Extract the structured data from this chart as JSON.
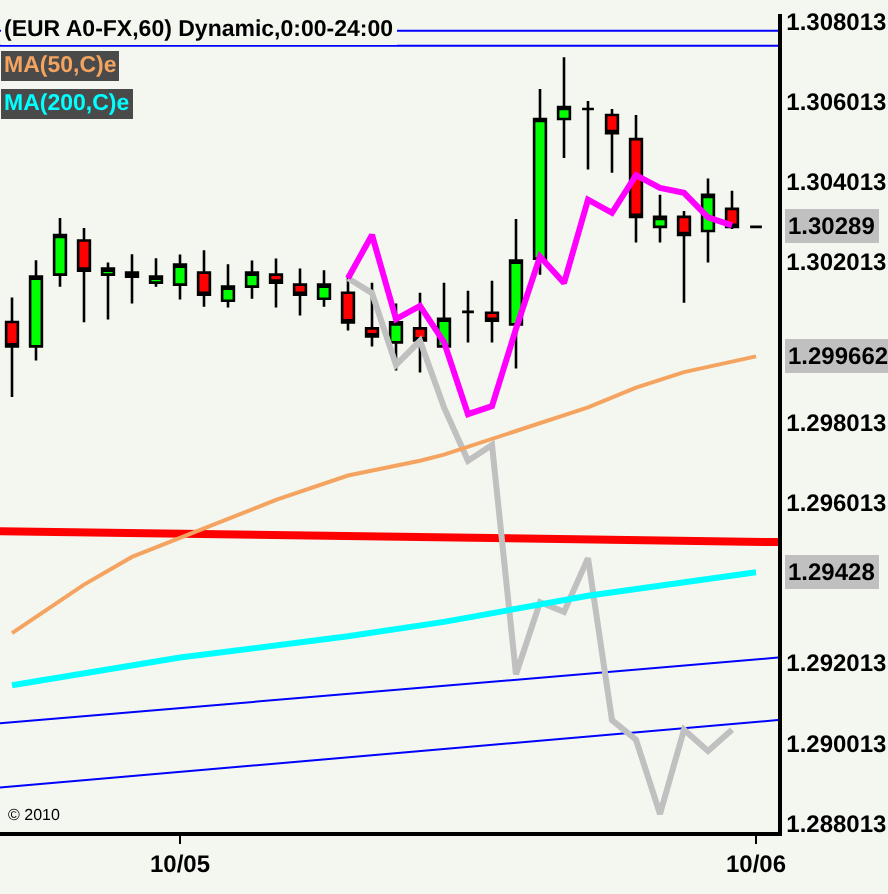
{
  "chart_data": {
    "type": "candlestick",
    "title": "(EUR A0-FX,60) Dynamic,0:00-24:00",
    "x": [
      "2010-10-04T17:00",
      "2010-10-04T18:00",
      "2010-10-04T19:00",
      "2010-10-04T20:00",
      "2010-10-04T21:00",
      "2010-10-04T22:00",
      "2010-10-04T23:00",
      "2010-10-05T00:00",
      "2010-10-05T01:00",
      "2010-10-05T02:00",
      "2010-10-05T03:00",
      "2010-10-05T04:00",
      "2010-10-05T05:00",
      "2010-10-05T06:00",
      "2010-10-05T07:00",
      "2010-10-05T08:00",
      "2010-10-05T09:00",
      "2010-10-05T10:00",
      "2010-10-05T11:00",
      "2010-10-05T12:00",
      "2010-10-05T13:00",
      "2010-10-05T14:00",
      "2010-10-05T15:00",
      "2010-10-05T16:00",
      "2010-10-05T17:00",
      "2010-10-05T18:00",
      "2010-10-05T19:00",
      "2010-10-05T20:00",
      "2010-10-05T21:00",
      "2010-10-05T22:00",
      "2010-10-05T23:00",
      "2010-10-06T00:00"
    ],
    "ohlc": [
      [
        1.30052,
        1.30113,
        1.29865,
        1.29991
      ],
      [
        1.29991,
        1.30206,
        1.29956,
        1.30165
      ],
      [
        1.3017,
        1.30311,
        1.3014,
        1.30269
      ],
      [
        1.30255,
        1.30286,
        1.30051,
        1.3018
      ],
      [
        1.3017,
        1.302,
        1.30058,
        1.30185
      ],
      [
        1.30175,
        1.30221,
        1.30098,
        1.30165
      ],
      [
        1.3015,
        1.30211,
        1.3014,
        1.30165
      ],
      [
        1.30145,
        1.3022,
        1.30108,
        1.30195
      ],
      [
        1.30175,
        1.30231,
        1.3009,
        1.3012
      ],
      [
        1.30105,
        1.30196,
        1.30088,
        1.3014
      ],
      [
        1.3014,
        1.30205,
        1.3011,
        1.30175
      ],
      [
        1.3017,
        1.3021,
        1.30088,
        1.3015
      ],
      [
        1.30145,
        1.30185,
        1.30068,
        1.3012
      ],
      [
        1.3011,
        1.30181,
        1.3009,
        1.30145
      ],
      [
        1.30125,
        1.3017,
        1.30031,
        1.30051
      ],
      [
        1.30036,
        1.3015,
        1.29991,
        1.30016
      ],
      [
        1.30001,
        1.30098,
        1.29931,
        1.30051
      ],
      [
        1.30036,
        1.30125,
        1.29926,
        1.30006
      ],
      [
        1.29991,
        1.3015,
        1.29991,
        1.3006
      ],
      [
        1.30077,
        1.3013,
        1.30001,
        1.30077
      ],
      [
        1.30075,
        1.30155,
        1.30001,
        1.30055
      ],
      [
        1.30046,
        1.30309,
        1.29936,
        1.30205
      ],
      [
        1.3021,
        1.30633,
        1.3017,
        1.30558
      ],
      [
        1.30558,
        1.30712,
        1.30461,
        1.30588
      ],
      [
        1.30583,
        1.30603,
        1.30432,
        1.30583
      ],
      [
        1.30568,
        1.30583,
        1.30424,
        1.30523
      ],
      [
        1.30508,
        1.30568,
        1.3025,
        1.30314
      ],
      [
        1.30289,
        1.30369,
        1.3025,
        1.30314
      ],
      [
        1.30314,
        1.30329,
        1.301,
        1.30269
      ],
      [
        1.30279,
        1.3041,
        1.302,
        1.30369
      ],
      [
        1.30334,
        1.30379,
        1.30284,
        1.30289
      ],
      [
        1.30289,
        1.30289,
        1.30289,
        1.30289
      ]
    ],
    "series": [
      {
        "type": "line",
        "color": "#ff0000",
        "x": [
          "2010-10-04T16:30",
          "2010-10-06T00:55"
        ],
        "values": [
          1.2953,
          1.29503
        ]
      },
      {
        "type": "line",
        "color": "#0000ff",
        "x": [
          "2010-10-04T16:30",
          "2010-10-06T00:55"
        ],
        "values": [
          1.29051,
          1.29215
        ]
      },
      {
        "type": "line",
        "color": "#0000ff",
        "x": [
          "2010-10-04T16:30",
          "2010-10-06T00:55"
        ],
        "values": [
          1.28891,
          1.29059
        ]
      },
      {
        "type": "line",
        "color": "#c0c0c0",
        "x": [
          "2010-10-05T07:00",
          "2010-10-05T08:00",
          "2010-10-05T09:00",
          "2010-10-05T10:00",
          "2010-10-05T11:00",
          "2010-10-05T12:00",
          "2010-10-05T13:00",
          "2010-10-05T14:00",
          "2010-10-05T15:00",
          "2010-10-05T16:00",
          "2010-10-05T17:00",
          "2010-10-05T18:00",
          "2010-10-05T19:00",
          "2010-10-05T20:00",
          "2010-10-05T21:00",
          "2010-10-05T22:00",
          "2010-10-05T23:00"
        ],
        "values": [
          1.30161,
          1.30124,
          1.29945,
          1.30005,
          1.29839,
          1.29706,
          1.29745,
          1.29173,
          1.29353,
          1.29329,
          1.29463,
          1.29059,
          1.2901,
          1.28825,
          1.29035,
          1.28982,
          1.29035
        ]
      },
      {
        "type": "line",
        "color": "#ff00ff",
        "x": [
          "2010-10-05T07:00",
          "2010-10-05T08:00",
          "2010-10-05T09:00",
          "2010-10-05T10:00",
          "2010-10-05T11:00",
          "2010-10-05T12:00",
          "2010-10-05T13:00",
          "2010-10-05T14:00",
          "2010-10-05T15:00",
          "2010-10-05T16:00",
          "2010-10-05T17:00",
          "2010-10-05T18:00",
          "2010-10-05T19:00",
          "2010-10-05T20:00",
          "2010-10-05T21:00",
          "2010-10-05T22:00",
          "2010-10-05T23:00"
        ],
        "values": [
          1.30161,
          1.30269,
          1.30059,
          1.30092,
          1.30002,
          1.29822,
          1.29842,
          1.30035,
          1.30215,
          1.30149,
          1.30357,
          1.30324,
          1.30418,
          1.30386,
          1.30374,
          1.30313,
          1.30293
        ]
      },
      {
        "type": "line",
        "name": "MA(50,C)e",
        "color": "#f4a460",
        "x": [
          "2010-10-04T17:00",
          "2010-10-04T20:00",
          "2010-10-04T22:00",
          "2010-10-05T01:00",
          "2010-10-05T04:00",
          "2010-10-05T07:00",
          "2010-10-05T10:00",
          "2010-10-05T11:00",
          "2010-10-05T14:00",
          "2010-10-05T17:00",
          "2010-10-05T19:00",
          "2010-10-05T21:00",
          "2010-10-06T00:00"
        ],
        "values": [
          1.29276,
          1.29397,
          1.29466,
          1.29537,
          1.29608,
          1.29669,
          1.29706,
          1.29721,
          1.2978,
          1.29839,
          1.29888,
          1.29927,
          1.299662
        ]
      },
      {
        "type": "line",
        "name": "MA(200,C)e",
        "color": "#00ffff",
        "x": [
          "2010-10-04T17:00",
          "2010-10-05T00:00",
          "2010-10-05T07:00",
          "2010-10-05T11:00",
          "2010-10-05T17:00",
          "2010-10-06T00:00"
        ],
        "values": [
          1.29146,
          1.29215,
          1.29268,
          1.29304,
          1.29369,
          1.29428
        ]
      }
    ],
    "ref_lines": [
      {
        "axis": "y",
        "value": 1.30778,
        "color": "#0000ff"
      },
      {
        "axis": "y",
        "value": 1.30741,
        "color": "#0000ff"
      }
    ],
    "annotations": [
      {
        "text": "1.30289",
        "x": "2010-10-06T00:00",
        "y": 1.30289
      },
      {
        "text": "1.299662",
        "x": "2010-10-06T00:00",
        "y": 1.299662
      },
      {
        "text": "1.29428",
        "x": "2010-10-06T00:00",
        "y": 1.29428
      },
      "© 2010"
    ],
    "xlim": [
      "2010-10-04T16:30",
      "2010-10-06T00:55"
    ],
    "xticks": [
      {
        "value": "2010-10-05",
        "label": "10/05"
      },
      {
        "value": "2010-10-06",
        "label": "10/06"
      }
    ],
    "ylim": [
      1.2878,
      1.3082
    ],
    "yticks": [
      1.288013,
      1.290013,
      1.292013,
      1.296013,
      1.298013,
      1.302013,
      1.304013,
      1.306013,
      1.308013
    ],
    "legend": "top left",
    "grid": false
  }
}
